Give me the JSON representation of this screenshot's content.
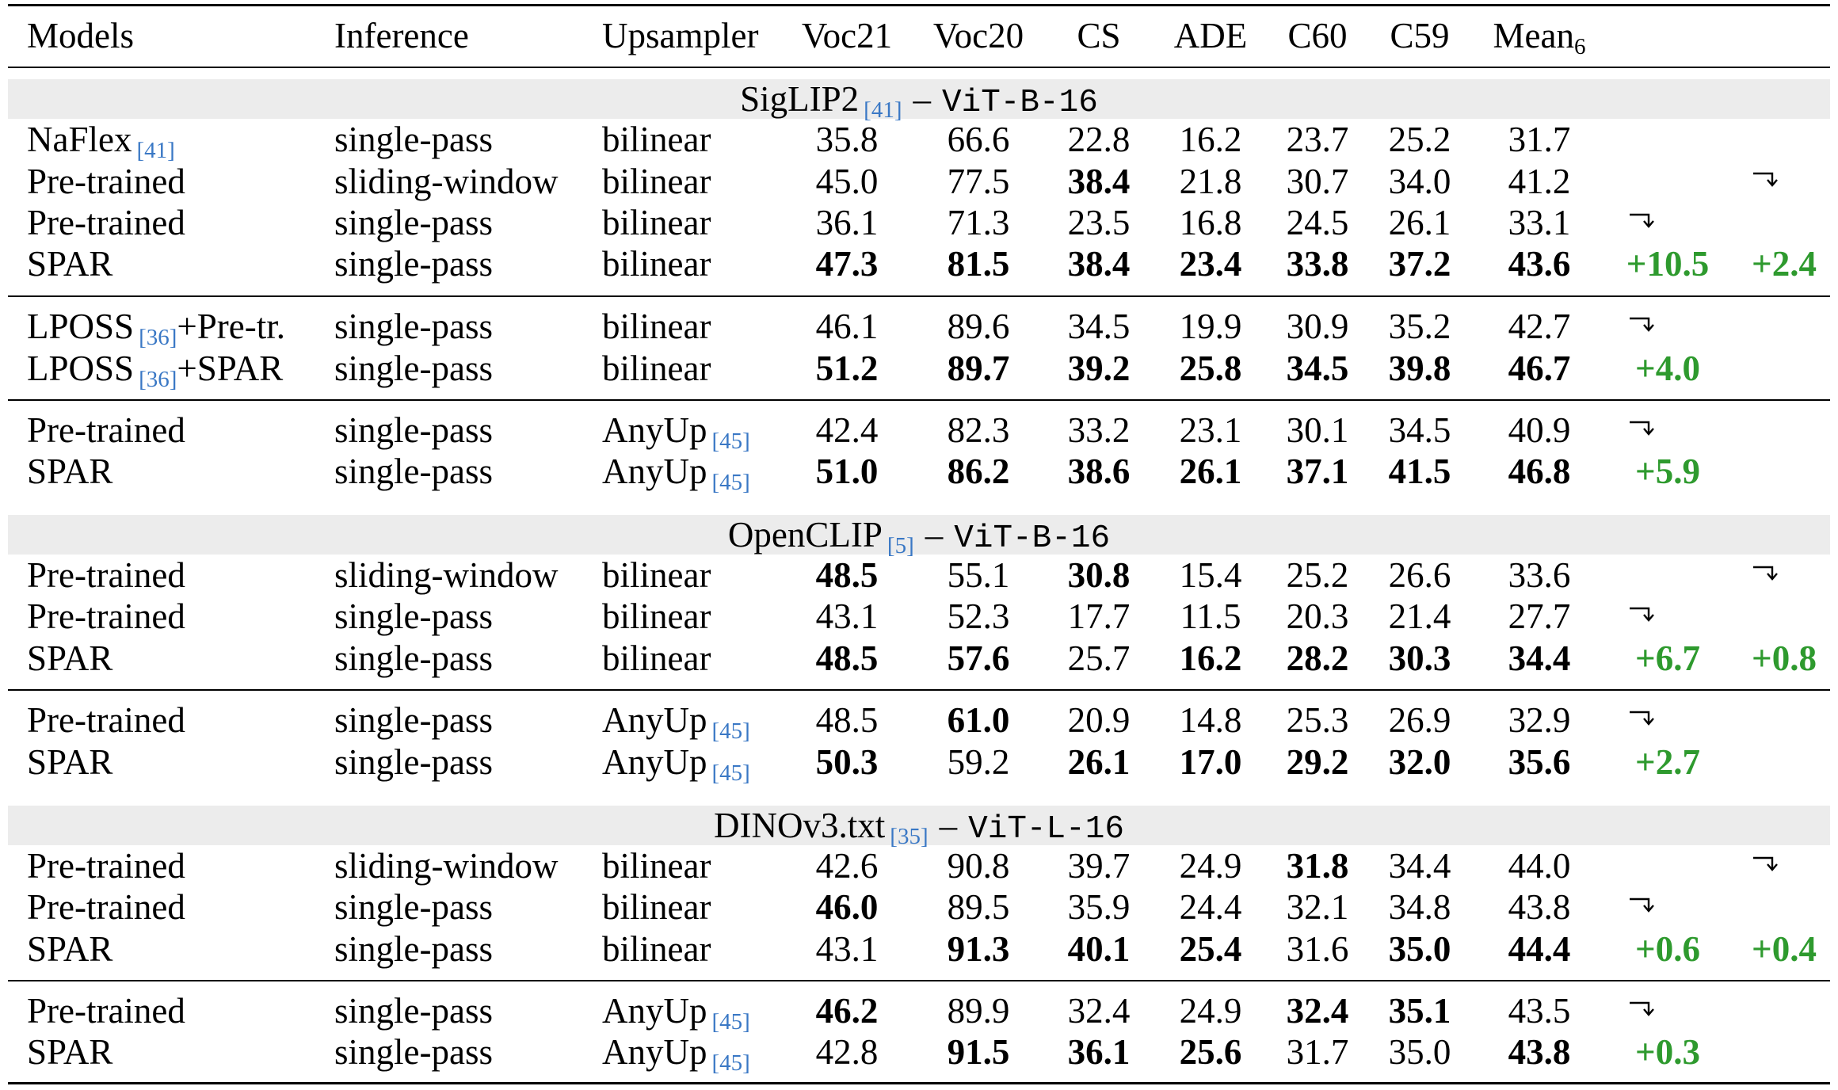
{
  "header": [
    "Models",
    "Inference",
    "Upsampler",
    "Voc21",
    "Voc20",
    "CS",
    "ADE",
    "C60",
    "C59",
    "Mean",
    "6"
  ],
  "sections": [
    {
      "name": "SigLIP2",
      "cite": "[41]",
      "dash": "–",
      "arch": "ViT-B-16"
    },
    {
      "name": "OpenCLIP",
      "cite": "[5]",
      "dash": "–",
      "arch": "ViT-B-16"
    },
    {
      "name": "DINOv3.txt",
      "cite": "[35]",
      "dash": "–",
      "arch": "ViT-L-16"
    }
  ],
  "rows": [
    {
      "model": "NaFlex",
      "mcite": "[41]",
      "msuffix": "",
      "inference": "single-pass",
      "upsampler": "bilinear",
      "ucite": "",
      "values": [
        "35.8",
        "66.6",
        "22.8",
        "16.2",
        "23.7",
        "25.2",
        "31.7"
      ],
      "bold": [
        false,
        false,
        false,
        false,
        false,
        false,
        false
      ],
      "delta1": "",
      "delta2": "",
      "arrow1": false,
      "arrow2": false
    },
    {
      "model": "Pre-trained",
      "mcite": "",
      "msuffix": "",
      "inference": "sliding-window",
      "upsampler": "bilinear",
      "ucite": "",
      "values": [
        "45.0",
        "77.5",
        "38.4",
        "21.8",
        "30.7",
        "34.0",
        "41.2"
      ],
      "bold": [
        false,
        false,
        true,
        false,
        false,
        false,
        false
      ],
      "delta1": "",
      "delta2": "",
      "arrow1": false,
      "arrow2": true
    },
    {
      "model": "Pre-trained",
      "mcite": "",
      "msuffix": "",
      "inference": "single-pass",
      "upsampler": "bilinear",
      "ucite": "",
      "values": [
        "36.1",
        "71.3",
        "23.5",
        "16.8",
        "24.5",
        "26.1",
        "33.1"
      ],
      "bold": [
        false,
        false,
        false,
        false,
        false,
        false,
        false
      ],
      "delta1": "",
      "delta2": "",
      "arrow1": true,
      "arrow2": false
    },
    {
      "model": "SPAR",
      "mcite": "",
      "msuffix": "",
      "inference": "single-pass",
      "upsampler": "bilinear",
      "ucite": "",
      "values": [
        "47.3",
        "81.5",
        "38.4",
        "23.4",
        "33.8",
        "37.2",
        "43.6"
      ],
      "bold": [
        true,
        true,
        true,
        true,
        true,
        true,
        true
      ],
      "delta1": "+10.5",
      "delta2": "+2.4",
      "arrow1": false,
      "arrow2": false
    },
    {
      "model": "LPOSS",
      "mcite": "[36]",
      "msuffix": "+Pre-tr.",
      "inference": "single-pass",
      "upsampler": "bilinear",
      "ucite": "",
      "values": [
        "46.1",
        "89.6",
        "34.5",
        "19.9",
        "30.9",
        "35.2",
        "42.7"
      ],
      "bold": [
        false,
        false,
        false,
        false,
        false,
        false,
        false
      ],
      "delta1": "",
      "delta2": "",
      "arrow1": true,
      "arrow2": false
    },
    {
      "model": "LPOSS",
      "mcite": "[36]",
      "msuffix": "+SPAR",
      "inference": "single-pass",
      "upsampler": "bilinear",
      "ucite": "",
      "values": [
        "51.2",
        "89.7",
        "39.2",
        "25.8",
        "34.5",
        "39.8",
        "46.7"
      ],
      "bold": [
        true,
        true,
        true,
        true,
        true,
        true,
        true
      ],
      "delta1": "+4.0",
      "delta2": "",
      "arrow1": false,
      "arrow2": false
    },
    {
      "model": "Pre-trained",
      "mcite": "",
      "msuffix": "",
      "inference": "single-pass",
      "upsampler": "AnyUp",
      "ucite": "[45]",
      "values": [
        "42.4",
        "82.3",
        "33.2",
        "23.1",
        "30.1",
        "34.5",
        "40.9"
      ],
      "bold": [
        false,
        false,
        false,
        false,
        false,
        false,
        false
      ],
      "delta1": "",
      "delta2": "",
      "arrow1": true,
      "arrow2": false
    },
    {
      "model": "SPAR",
      "mcite": "",
      "msuffix": "",
      "inference": "single-pass",
      "upsampler": "AnyUp",
      "ucite": "[45]",
      "values": [
        "51.0",
        "86.2",
        "38.6",
        "26.1",
        "37.1",
        "41.5",
        "46.8"
      ],
      "bold": [
        true,
        true,
        true,
        true,
        true,
        true,
        true
      ],
      "delta1": "+5.9",
      "delta2": "",
      "arrow1": false,
      "arrow2": false
    },
    {
      "model": "Pre-trained",
      "mcite": "",
      "msuffix": "",
      "inference": "sliding-window",
      "upsampler": "bilinear",
      "ucite": "",
      "values": [
        "48.5",
        "55.1",
        "30.8",
        "15.4",
        "25.2",
        "26.6",
        "33.6"
      ],
      "bold": [
        true,
        false,
        true,
        false,
        false,
        false,
        false
      ],
      "delta1": "",
      "delta2": "",
      "arrow1": false,
      "arrow2": true
    },
    {
      "model": "Pre-trained",
      "mcite": "",
      "msuffix": "",
      "inference": "single-pass",
      "upsampler": "bilinear",
      "ucite": "",
      "values": [
        "43.1",
        "52.3",
        "17.7",
        "11.5",
        "20.3",
        "21.4",
        "27.7"
      ],
      "bold": [
        false,
        false,
        false,
        false,
        false,
        false,
        false
      ],
      "delta1": "",
      "delta2": "",
      "arrow1": true,
      "arrow2": false
    },
    {
      "model": "SPAR",
      "mcite": "",
      "msuffix": "",
      "inference": "single-pass",
      "upsampler": "bilinear",
      "ucite": "",
      "values": [
        "48.5",
        "57.6",
        "25.7",
        "16.2",
        "28.2",
        "30.3",
        "34.4"
      ],
      "bold": [
        true,
        true,
        false,
        true,
        true,
        true,
        true
      ],
      "delta1": "+6.7",
      "delta2": "+0.8",
      "arrow1": false,
      "arrow2": false
    },
    {
      "model": "Pre-trained",
      "mcite": "",
      "msuffix": "",
      "inference": "single-pass",
      "upsampler": "AnyUp",
      "ucite": "[45]",
      "values": [
        "48.5",
        "61.0",
        "20.9",
        "14.8",
        "25.3",
        "26.9",
        "32.9"
      ],
      "bold": [
        false,
        true,
        false,
        false,
        false,
        false,
        false
      ],
      "delta1": "",
      "delta2": "",
      "arrow1": true,
      "arrow2": false
    },
    {
      "model": "SPAR",
      "mcite": "",
      "msuffix": "",
      "inference": "single-pass",
      "upsampler": "AnyUp",
      "ucite": "[45]",
      "values": [
        "50.3",
        "59.2",
        "26.1",
        "17.0",
        "29.2",
        "32.0",
        "35.6"
      ],
      "bold": [
        true,
        false,
        true,
        true,
        true,
        true,
        true
      ],
      "delta1": "+2.7",
      "delta2": "",
      "arrow1": false,
      "arrow2": false
    },
    {
      "model": "Pre-trained",
      "mcite": "",
      "msuffix": "",
      "inference": "sliding-window",
      "upsampler": "bilinear",
      "ucite": "",
      "values": [
        "42.6",
        "90.8",
        "39.7",
        "24.9",
        "31.8",
        "34.4",
        "44.0"
      ],
      "bold": [
        false,
        false,
        false,
        false,
        true,
        false,
        false
      ],
      "delta1": "",
      "delta2": "",
      "arrow1": false,
      "arrow2": true
    },
    {
      "model": "Pre-trained",
      "mcite": "",
      "msuffix": "",
      "inference": "single-pass",
      "upsampler": "bilinear",
      "ucite": "",
      "values": [
        "46.0",
        "89.5",
        "35.9",
        "24.4",
        "32.1",
        "34.8",
        "43.8"
      ],
      "bold": [
        true,
        false,
        false,
        false,
        false,
        false,
        false
      ],
      "delta1": "",
      "delta2": "",
      "arrow1": true,
      "arrow2": false
    },
    {
      "model": "SPAR",
      "mcite": "",
      "msuffix": "",
      "inference": "single-pass",
      "upsampler": "bilinear",
      "ucite": "",
      "values": [
        "43.1",
        "91.3",
        "40.1",
        "25.4",
        "31.6",
        "35.0",
        "44.4"
      ],
      "bold": [
        false,
        true,
        true,
        true,
        false,
        true,
        true
      ],
      "delta1": "+0.6",
      "delta2": "+0.4",
      "arrow1": false,
      "arrow2": false
    },
    {
      "model": "Pre-trained",
      "mcite": "",
      "msuffix": "",
      "inference": "single-pass",
      "upsampler": "AnyUp",
      "ucite": "[45]",
      "values": [
        "46.2",
        "89.9",
        "32.4",
        "24.9",
        "32.4",
        "35.1",
        "43.5"
      ],
      "bold": [
        true,
        false,
        false,
        false,
        true,
        true,
        false
      ],
      "delta1": "",
      "delta2": "",
      "arrow1": true,
      "arrow2": false
    },
    {
      "model": "SPAR",
      "mcite": "",
      "msuffix": "",
      "inference": "single-pass",
      "upsampler": "AnyUp",
      "ucite": "[45]",
      "values": [
        "42.8",
        "91.5",
        "36.1",
        "25.6",
        "31.7",
        "35.0",
        "43.8"
      ],
      "bold": [
        false,
        true,
        true,
        true,
        false,
        false,
        true
      ],
      "delta1": "+0.3",
      "delta2": "",
      "arrow1": false,
      "arrow2": false
    }
  ],
  "colors": {
    "delta": "#2e9a2e",
    "cite": "#3a78c5",
    "band": "#ececec"
  }
}
